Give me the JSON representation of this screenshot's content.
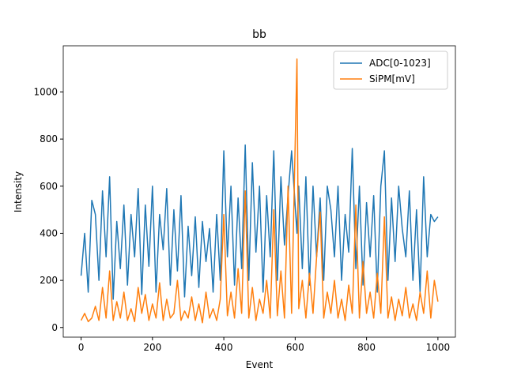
{
  "chart_data": {
    "type": "line",
    "title": "bb",
    "x_label": "Event",
    "y_label": "Intensity",
    "x": [
      0,
      10,
      20,
      30,
      40,
      50,
      60,
      70,
      80,
      90,
      100,
      110,
      120,
      130,
      140,
      150,
      160,
      170,
      180,
      190,
      200,
      210,
      220,
      230,
      240,
      250,
      260,
      270,
      280,
      290,
      300,
      310,
      320,
      330,
      340,
      350,
      360,
      370,
      380,
      390,
      400,
      410,
      420,
      430,
      440,
      450,
      460,
      470,
      480,
      490,
      500,
      510,
      520,
      530,
      540,
      550,
      560,
      570,
      580,
      590,
      605,
      610,
      620,
      630,
      640,
      650,
      660,
      670,
      680,
      690,
      700,
      710,
      720,
      730,
      740,
      750,
      760,
      770,
      780,
      790,
      800,
      810,
      820,
      830,
      840,
      850,
      860,
      870,
      880,
      890,
      900,
      910,
      920,
      930,
      940,
      950,
      960,
      970,
      980,
      990,
      1000
    ],
    "series": [
      {
        "name": "ADC[0-1023]",
        "color": "#1f77b4",
        "values": [
          220,
          400,
          150,
          540,
          480,
          200,
          580,
          300,
          640,
          120,
          450,
          250,
          520,
          180,
          480,
          300,
          590,
          140,
          520,
          260,
          600,
          150,
          480,
          330,
          590,
          180,
          500,
          240,
          560,
          130,
          430,
          220,
          470,
          170,
          450,
          280,
          420,
          150,
          480,
          200,
          750,
          300,
          600,
          180,
          550,
          250,
          775,
          200,
          700,
          320,
          600,
          150,
          560,
          300,
          750,
          200,
          640,
          350,
          560,
          750,
          400,
          600,
          250,
          640,
          180,
          600,
          300,
          550,
          200,
          600,
          500,
          300,
          600,
          200,
          480,
          320,
          760,
          250,
          600,
          180,
          530,
          300,
          560,
          150,
          600,
          750,
          200,
          550,
          280,
          600,
          420,
          300,
          580,
          200,
          500,
          150,
          640,
          300,
          480,
          450,
          470
        ]
      },
      {
        "name": "SiPM[mV]",
        "color": "#ff7f0e",
        "values": [
          30,
          60,
          25,
          40,
          90,
          30,
          170,
          40,
          240,
          30,
          110,
          40,
          150,
          30,
          80,
          25,
          170,
          60,
          140,
          30,
          100,
          40,
          190,
          30,
          120,
          40,
          60,
          200,
          30,
          70,
          40,
          130,
          30,
          100,
          20,
          150,
          40,
          80,
          30,
          120,
          480,
          50,
          150,
          40,
          250,
          60,
          580,
          40,
          170,
          30,
          120,
          60,
          200,
          40,
          500,
          50,
          240,
          40,
          600,
          60,
          1140,
          80,
          200,
          40,
          230,
          60,
          300,
          490,
          40,
          150,
          60,
          200,
          40,
          120,
          30,
          180,
          60,
          520,
          40,
          280,
          60,
          150,
          40,
          230,
          60,
          470,
          40,
          130,
          30,
          120,
          50,
          170,
          40,
          100,
          30,
          150,
          60,
          240,
          40,
          200,
          110
        ]
      }
    ],
    "xlim": [
      -50,
      1049
    ],
    "ylim": [
      -41,
      1196
    ],
    "xticks": [
      0,
      200,
      400,
      600,
      800,
      1000
    ],
    "yticks": [
      0,
      200,
      400,
      600,
      800,
      1000
    ],
    "legend": "upper right"
  }
}
